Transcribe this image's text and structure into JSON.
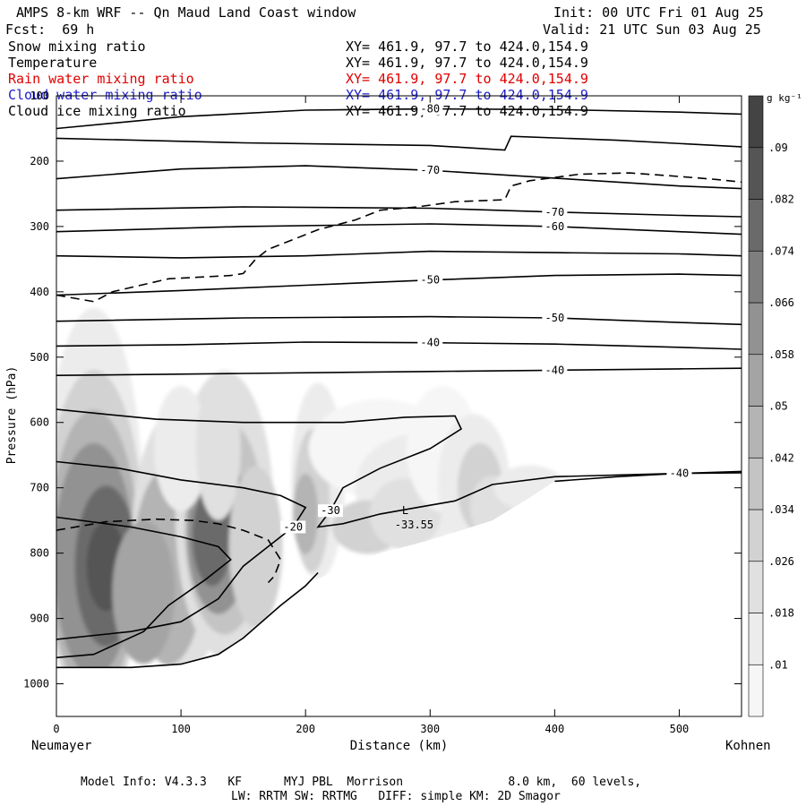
{
  "header": {
    "title": "AMPS 8-km WRF -- Qn Maud Land Coast window",
    "init": "Init: 00 UTC Fri 01 Aug 25",
    "fcst": "Fcst:  69 h",
    "valid": "Valid: 21 UTC Sun 03 Aug 25"
  },
  "fields": [
    {
      "name": "Snow mixing ratio",
      "xy": "XY= 461.9, 97.7 to 424.0,154.9",
      "color": "#000000"
    },
    {
      "name": "Temperature",
      "xy": "XY= 461.9, 97.7 to 424.0,154.9",
      "color": "#000000"
    },
    {
      "name": "Rain water mixing ratio",
      "xy": "XY= 461.9, 97.7 to 424.0,154.9",
      "color": "#e00000"
    },
    {
      "name": "Cloud water mixing ratio",
      "xy": "XY= 461.9, 97.7 to 424.0,154.9",
      "color": "#1c1cc8"
    },
    {
      "name": "Cloud ice mixing ratio",
      "xy": "XY= 461.9, 97.7 to 424.0,154.9",
      "color": "#000000"
    }
  ],
  "footer": {
    "line1": "Model Info: V4.3.3   KF      MYJ PBL  Morrison               8.0 km,  60 levels,",
    "line2": "LW: RRTM SW: RRTMG   DIFF: simple KM: 2D Smagor"
  },
  "chart_data": {
    "type": "heatmap",
    "title": "AMPS 8-km WRF -- Qn Maud Land Coast window",
    "xlabel": "Distance (km)",
    "ylabel": "Pressure (hPa)",
    "x_left_label": "Neumayer",
    "x_right_label": "Kohnen",
    "xlim": [
      0,
      550
    ],
    "ylim": [
      1050,
      100
    ],
    "x_ticks": [
      0,
      100,
      200,
      300,
      400,
      500
    ],
    "y_ticks": [
      100,
      200,
      300,
      400,
      500,
      600,
      700,
      800,
      900,
      1000
    ],
    "colorbar": {
      "unit": "g kg⁻¹",
      "levels": [
        0.01,
        0.018,
        0.026,
        0.034,
        0.042,
        0.05,
        0.058,
        0.066,
        0.074,
        0.082,
        0.09
      ],
      "labels": [
        ".01",
        ".018",
        ".026",
        ".034",
        ".042",
        ".05",
        ".058",
        ".066",
        ".074",
        ".082",
        ".09"
      ],
      "colors": [
        "#f6f6f6",
        "#ececec",
        "#e0e0e0",
        "#d2d2d2",
        "#c4c4c4",
        "#b4b4b4",
        "#a4a4a4",
        "#929292",
        "#7e7e7e",
        "#6a6a6a",
        "#555555",
        "#444444"
      ]
    },
    "temperature_contours": [
      {
        "value": -80,
        "label": "-80",
        "points": [
          [
            0,
            150
          ],
          [
            100,
            132
          ],
          [
            200,
            122
          ],
          [
            300,
            120
          ],
          [
            400,
            121
          ],
          [
            500,
            125
          ],
          [
            550,
            128
          ]
        ]
      },
      {
        "value": -80,
        "label": "",
        "points": [
          [
            0,
            165
          ],
          [
            150,
            172
          ],
          [
            300,
            176
          ],
          [
            360,
            183
          ],
          [
            365,
            162
          ],
          [
            450,
            168
          ],
          [
            550,
            178
          ]
        ]
      },
      {
        "value": -70,
        "label": "-70",
        "points": [
          [
            0,
            227
          ],
          [
            100,
            212
          ],
          [
            200,
            207
          ],
          [
            300,
            214
          ],
          [
            400,
            226
          ],
          [
            500,
            238
          ],
          [
            550,
            242
          ]
        ]
      },
      {
        "value": -70,
        "label": "-70",
        "points": [
          [
            0,
            275
          ],
          [
            150,
            270
          ],
          [
            300,
            272
          ],
          [
            400,
            278
          ],
          [
            500,
            283
          ],
          [
            550,
            285
          ]
        ]
      },
      {
        "value": -60,
        "label": "-60",
        "points": [
          [
            0,
            308
          ],
          [
            150,
            300
          ],
          [
            300,
            296
          ],
          [
            400,
            300
          ],
          [
            500,
            308
          ],
          [
            550,
            312
          ]
        ]
      },
      {
        "value": -60,
        "label": "",
        "points": [
          [
            0,
            345
          ],
          [
            100,
            348
          ],
          [
            200,
            345
          ],
          [
            300,
            338
          ],
          [
            400,
            340
          ],
          [
            500,
            342
          ],
          [
            550,
            345
          ]
        ]
      },
      {
        "value": -50,
        "label": "-50",
        "points": [
          [
            0,
            405
          ],
          [
            100,
            398
          ],
          [
            200,
            390
          ],
          [
            300,
            382
          ],
          [
            400,
            375
          ],
          [
            500,
            373
          ],
          [
            550,
            375
          ]
        ]
      },
      {
        "value": -50,
        "label": "-50",
        "points": [
          [
            0,
            445
          ],
          [
            150,
            440
          ],
          [
            300,
            438
          ],
          [
            400,
            440
          ],
          [
            500,
            447
          ],
          [
            550,
            450
          ]
        ]
      },
      {
        "value": -40,
        "label": "-40",
        "points": [
          [
            0,
            483
          ],
          [
            100,
            481
          ],
          [
            200,
            477
          ],
          [
            300,
            478
          ],
          [
            400,
            480
          ],
          [
            500,
            485
          ],
          [
            550,
            488
          ]
        ]
      },
      {
        "value": -40,
        "label": "-40",
        "points": [
          [
            0,
            528
          ],
          [
            150,
            525
          ],
          [
            300,
            522
          ],
          [
            400,
            520
          ],
          [
            500,
            518
          ],
          [
            550,
            517
          ]
        ]
      },
      {
        "value": -30,
        "label": "-30",
        "points": [
          [
            0,
            580
          ],
          [
            80,
            595
          ],
          [
            150,
            600
          ],
          [
            230,
            600
          ],
          [
            280,
            592
          ],
          [
            320,
            590
          ],
          [
            325,
            610
          ],
          [
            300,
            640
          ],
          [
            260,
            670
          ],
          [
            230,
            700
          ],
          [
            220,
            735
          ],
          [
            210,
            760
          ],
          [
            230,
            755
          ],
          [
            260,
            740
          ],
          [
            290,
            730
          ],
          [
            320,
            720
          ],
          [
            350,
            695
          ],
          [
            400,
            683
          ],
          [
            500,
            678
          ],
          [
            550,
            677
          ]
        ]
      },
      {
        "value": -40,
        "label": "-40",
        "points": [
          [
            400,
            690
          ],
          [
            450,
            683
          ],
          [
            500,
            678
          ],
          [
            550,
            675
          ]
        ]
      },
      {
        "value": -20,
        "label": "-20",
        "points": [
          [
            0,
            660
          ],
          [
            50,
            670
          ],
          [
            100,
            688
          ],
          [
            150,
            700
          ],
          [
            180,
            712
          ],
          [
            200,
            730
          ],
          [
            190,
            760
          ],
          [
            170,
            790
          ],
          [
            150,
            820
          ],
          [
            130,
            870
          ],
          [
            100,
            905
          ],
          [
            60,
            920
          ],
          [
            0,
            932
          ]
        ]
      },
      {
        "value": -20,
        "label": "",
        "points": [
          [
            0,
            745
          ],
          [
            60,
            760
          ],
          [
            100,
            775
          ],
          [
            130,
            790
          ],
          [
            140,
            810
          ],
          [
            120,
            840
          ],
          [
            90,
            880
          ],
          [
            70,
            920
          ],
          [
            30,
            955
          ],
          [
            0,
            960
          ]
        ]
      },
      {
        "value": -20,
        "label": "",
        "points": [
          [
            0,
            975
          ],
          [
            60,
            975
          ],
          [
            100,
            970
          ],
          [
            130,
            955
          ],
          [
            150,
            930
          ],
          [
            180,
            880
          ],
          [
            200,
            850
          ],
          [
            210,
            830
          ]
        ]
      }
    ],
    "cloud_water_contours": [
      {
        "value": 0.01,
        "label": "",
        "points": [
          [
            0,
            405
          ],
          [
            30,
            415
          ],
          [
            45,
            400
          ],
          [
            90,
            380
          ],
          [
            140,
            375
          ],
          [
            150,
            372
          ],
          [
            160,
            350
          ],
          [
            170,
            335
          ],
          [
            190,
            320
          ],
          [
            210,
            305
          ],
          [
            240,
            290
          ],
          [
            260,
            275
          ],
          [
            290,
            270
          ],
          [
            320,
            262
          ],
          [
            360,
            259
          ],
          [
            365,
            238
          ],
          [
            380,
            230
          ],
          [
            420,
            220
          ],
          [
            460,
            218
          ],
          [
            490,
            222
          ],
          [
            530,
            228
          ],
          [
            550,
            232
          ]
        ]
      },
      {
        "value": 0.01,
        "label": "",
        "points": [
          [
            0,
            765
          ],
          [
            40,
            752
          ],
          [
            80,
            748
          ],
          [
            110,
            750
          ],
          [
            130,
            755
          ],
          [
            150,
            765
          ],
          [
            170,
            780
          ],
          [
            180,
            810
          ],
          [
            175,
            835
          ],
          [
            170,
            845
          ]
        ]
      }
    ],
    "low_marker": {
      "label": "L",
      "value": "-33.55",
      "x": 280,
      "p": 740
    }
  }
}
